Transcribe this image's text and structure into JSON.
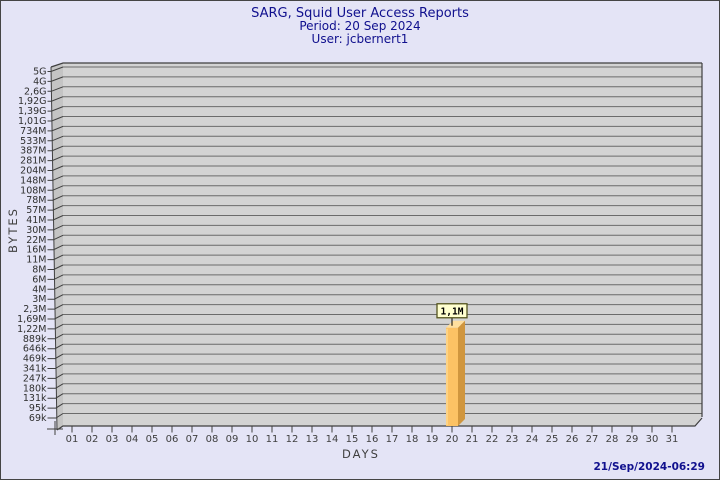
{
  "header": {
    "title": "SARG, Squid User Access Reports",
    "period": "Period: 20 Sep 2024",
    "user": "User: jcbernert1"
  },
  "footer": {
    "timestamp": "21/Sep/2024-06:29"
  },
  "chart_data": {
    "type": "bar",
    "title": "SARG, Squid User Access Reports",
    "subtitle": "Period: 20 Sep 2024 — User: jcbernert1",
    "xlabel": "DAYS",
    "ylabel": "BYTES",
    "scale": "log",
    "grid": true,
    "categories": [
      "01",
      "02",
      "03",
      "04",
      "05",
      "06",
      "07",
      "08",
      "09",
      "10",
      "11",
      "12",
      "13",
      "14",
      "15",
      "16",
      "17",
      "18",
      "19",
      "20",
      "21",
      "22",
      "23",
      "24",
      "25",
      "26",
      "27",
      "28",
      "29",
      "30",
      "31"
    ],
    "values": [
      0,
      0,
      0,
      0,
      0,
      0,
      0,
      0,
      0,
      0,
      0,
      0,
      0,
      0,
      0,
      0,
      0,
      0,
      0,
      1100000,
      0,
      0,
      0,
      0,
      0,
      0,
      0,
      0,
      0,
      0,
      0
    ],
    "bars": [
      {
        "day": 20,
        "label": "1,1M",
        "bytes": 1100000
      }
    ],
    "y_ticks": [
      "5G",
      "4G",
      "2,6G",
      "1,92G",
      "1,39G",
      "1,01G",
      "734M",
      "533M",
      "387M",
      "281M",
      "204M",
      "148M",
      "108M",
      "78M",
      "57M",
      "41M",
      "30M",
      "22M",
      "16M",
      "11M",
      "8M",
      "6M",
      "4M",
      "3M",
      "2,3M",
      "1,69M",
      "1,22M",
      "889k",
      "646k",
      "469k",
      "341k",
      "247k",
      "180k",
      "131k",
      "95k",
      "69k"
    ],
    "colors": {
      "background": "#e4e4f6",
      "title_text": "#10108e",
      "plot_bg": "#d3d3d3",
      "wall_bg": "#c4c4c4",
      "grid_line": "#6b6b6b",
      "axis_line": "#3f3f3f",
      "bar_front": "#fcc264",
      "bar_side": "#d0963e",
      "bar_top": "#ffdf9e",
      "bar_highlight": "#ffd98f",
      "label_box_bg": "#ffffcf",
      "label_box_border": "#55551e"
    }
  }
}
